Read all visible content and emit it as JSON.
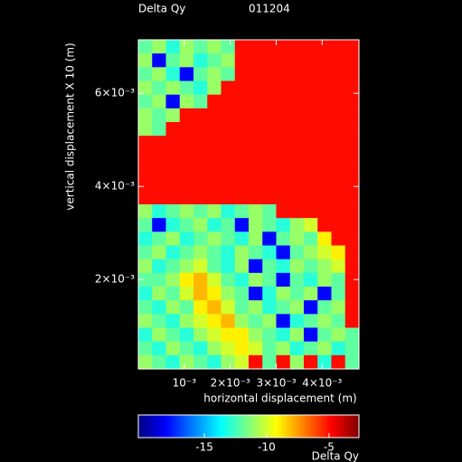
{
  "chart_data": {
    "type": "heatmap",
    "title": "Delta Qy",
    "subtitle": "011204",
    "x_label": "horizontal displacement (m)",
    "y_label": "vertical displacement X 10 (m)",
    "colorbar_label": "Delta Qy",
    "colormap": "jet",
    "xlim": [
      0,
      0.0048
    ],
    "ylim": [
      8e-05,
      0.00715
    ],
    "xticks": [
      {
        "value": 0.001,
        "label": "10⁻³"
      },
      {
        "value": 0.002,
        "label": "2×10⁻³"
      },
      {
        "value": 0.003,
        "label": "3×10⁻³"
      },
      {
        "value": 0.004,
        "label": "4×10⁻³"
      }
    ],
    "yticks": [
      {
        "value": 0.002,
        "label": "2×10⁻³"
      },
      {
        "value": 0.004,
        "label": "4×10⁻³"
      },
      {
        "value": 0.006,
        "label": "6×10⁻³"
      }
    ],
    "zlim": [
      -20.3,
      -2.6
    ],
    "zticks": [
      -15,
      -10,
      -5
    ],
    "z": [
      [
        -12,
        -11,
        -13,
        -11,
        -12,
        -11,
        -12,
        -5,
        -5,
        -5,
        -5,
        -5,
        -5,
        -5,
        -5,
        -5
      ],
      [
        -11,
        -18,
        -12,
        -11,
        -13,
        -12,
        -11,
        -5,
        -5,
        -5,
        -5,
        -5,
        -5,
        -5,
        -5,
        -5
      ],
      [
        -12,
        -11,
        -13,
        -18,
        -12,
        -11,
        -12,
        -5,
        -5,
        -5,
        -5,
        -5,
        -5,
        -5,
        -5,
        -5
      ],
      [
        -11,
        -12,
        -11,
        -12,
        -13,
        -11,
        -5,
        -5,
        -5,
        -5,
        -5,
        -5,
        -5,
        -5,
        -5,
        -5
      ],
      [
        -12,
        -11,
        -18,
        -11,
        -12,
        -5,
        -5,
        -5,
        -5,
        -5,
        -5,
        -5,
        -5,
        -5,
        -5,
        -5
      ],
      [
        -11,
        -12,
        -11,
        -5,
        -5,
        -5,
        -5,
        -5,
        -5,
        -5,
        -5,
        -5,
        -5,
        -5,
        -5,
        -5
      ],
      [
        -11,
        -12,
        -5,
        -5,
        -5,
        -5,
        -5,
        -5,
        -5,
        -5,
        -5,
        -5,
        -5,
        -5,
        -5,
        -5
      ],
      [
        -5,
        -5,
        -5,
        -5,
        -5,
        -5,
        -5,
        -5,
        -5,
        -5,
        -5,
        -5,
        -5,
        -5,
        -5,
        -5
      ],
      [
        -5,
        -5,
        -5,
        -5,
        -5,
        -5,
        -5,
        -5,
        -5,
        -5,
        -5,
        -5,
        -5,
        -5,
        -5,
        -5
      ],
      [
        -5,
        -5,
        -5,
        -5,
        -5,
        -5,
        -5,
        -5,
        -5,
        -5,
        -5,
        -5,
        -5,
        -5,
        -5,
        -5
      ],
      [
        -5,
        -5,
        -5,
        -5,
        -5,
        -5,
        -5,
        -5,
        -5,
        -5,
        -5,
        -5,
        -5,
        -5,
        -5,
        -5
      ],
      [
        -5,
        -5,
        -5,
        -5,
        -5,
        -5,
        -5,
        -5,
        -5,
        -5,
        -5,
        -5,
        -5,
        -5,
        -5,
        -5
      ],
      [
        -11,
        -13,
        -12,
        -11,
        -12,
        -11,
        -13,
        -12,
        -11,
        -12,
        -5,
        -5,
        -5,
        -5,
        -5,
        -5
      ],
      [
        -12,
        -18,
        -13,
        -12,
        -11,
        -13,
        -12,
        -18,
        -11,
        -12,
        -13,
        -11,
        -10,
        -5,
        -5,
        -5
      ],
      [
        -13,
        -12,
        -11,
        -13,
        -12,
        -11,
        -12,
        -13,
        -11,
        -18,
        -12,
        -11,
        -12,
        -9,
        -5,
        -5
      ],
      [
        -12,
        -11,
        -13,
        -12,
        -11,
        -12,
        -13,
        -11,
        -12,
        -13,
        -18,
        -12,
        -11,
        -10,
        -9,
        -5
      ],
      [
        -11,
        -13,
        -12,
        -11,
        -10,
        -12,
        -13,
        -11,
        -18,
        -12,
        -13,
        -11,
        -12,
        -11,
        -10,
        -5
      ],
      [
        -12,
        -12,
        -11,
        -9,
        -8,
        -10,
        -12,
        -13,
        -11,
        -12,
        -18,
        -12,
        -13,
        -11,
        -12,
        -5
      ],
      [
        -13,
        -11,
        -12,
        -10,
        -8,
        -9,
        -11,
        -12,
        -18,
        -13,
        -11,
        -12,
        -11,
        -18,
        -12,
        -5
      ],
      [
        -12,
        -13,
        -11,
        -12,
        -9,
        -8,
        -10,
        -12,
        -11,
        -13,
        -12,
        -11,
        -18,
        -12,
        -11,
        -5
      ],
      [
        -11,
        -12,
        -13,
        -11,
        -10,
        -9,
        -8,
        -11,
        -12,
        -11,
        -18,
        -13,
        -12,
        -11,
        -12,
        -5
      ],
      [
        -13,
        -11,
        -12,
        -13,
        -11,
        -10,
        -9,
        -9,
        -11,
        -12,
        -13,
        -11,
        -18,
        -12,
        -11,
        -12
      ],
      [
        -12,
        -13,
        -11,
        -12,
        -13,
        -11,
        -10,
        -9,
        -10,
        -12,
        -11,
        -13,
        -12,
        -11,
        -13,
        -12
      ],
      [
        -11,
        -12,
        -13,
        -11,
        -12,
        -13,
        -11,
        -10,
        -5,
        -12,
        -5,
        -11,
        -5,
        -13,
        -5,
        -12
      ]
    ]
  }
}
